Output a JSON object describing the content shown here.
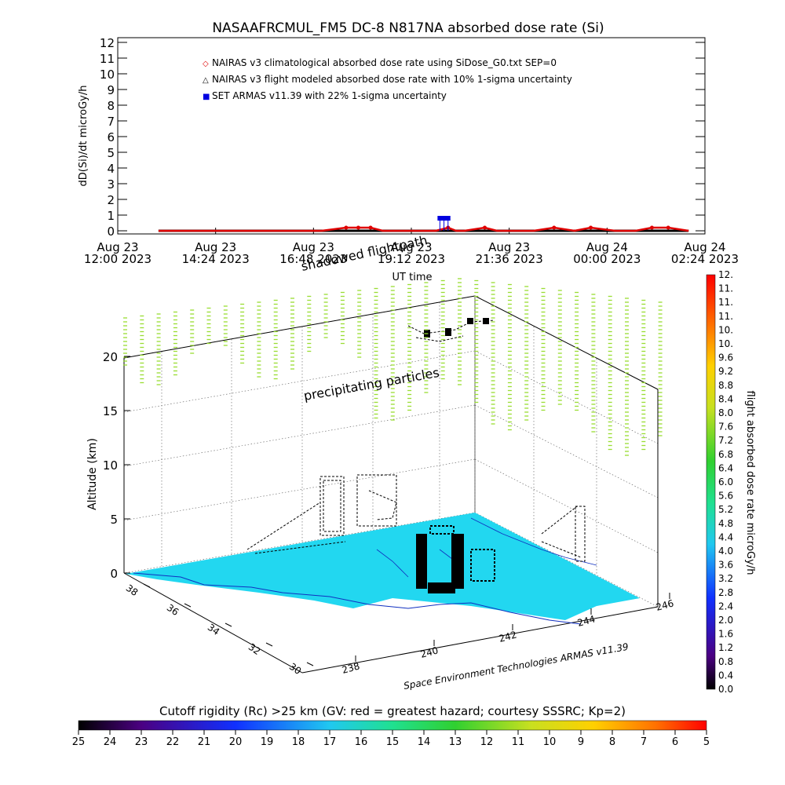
{
  "title": "NASAAFRCMUL_FM5 DC-8   N817NA absorbed dose rate (Si)",
  "colors": {
    "nairas_clim": "#e00000",
    "nairas_flight": "#000000",
    "armas": "#0000e0",
    "terrain": "#22d7f0",
    "precip": "#99dd33"
  },
  "chart_data": [
    {
      "type": "line",
      "ylabel": "dD(Si)/dt microGy/h",
      "xlabel": "UT time",
      "ylim": [
        0,
        12
      ],
      "yticks": [
        "0",
        "1",
        "2",
        "3",
        "4",
        "5",
        "6",
        "7",
        "8",
        "9",
        "10",
        "11",
        "12"
      ],
      "xticks": [
        {
          "t": 0,
          "line1": "Aug 23",
          "line2": "12:00 2023"
        },
        {
          "t": 2.4,
          "line1": "Aug 23",
          "line2": "14:24 2023"
        },
        {
          "t": 4.8,
          "line1": "Aug 23",
          "line2": "16:48 2023"
        },
        {
          "t": 7.2,
          "line1": "Aug 23",
          "line2": "19:12 2023"
        },
        {
          "t": 9.6,
          "line1": "Aug 23",
          "line2": "21:36 2023"
        },
        {
          "t": 12.0,
          "line1": "Aug 24",
          "line2": "00:00 2023"
        },
        {
          "t": 14.4,
          "line1": "Aug 24",
          "line2": "02:24 2023"
        }
      ],
      "legend": [
        {
          "symbol": "◇",
          "color": "#e00000",
          "text": "NAIRAS v3 climatological absorbed dose rate using SiDose_G0.txt SEP=0"
        },
        {
          "symbol": "△",
          "color": "#000000",
          "text": "NAIRAS v3 flight modeled absorbed dose rate with 10% 1-sigma uncertainty"
        },
        {
          "symbol": "■",
          "color": "#0000e0",
          "text": "SET ARMAS v11.39 with 22% 1-sigma uncertainty"
        }
      ],
      "series": [
        {
          "name": "NAIRAS v3 climatological absorbed dose rate using SiDose_G0.txt SEP=0",
          "x": [
            1.0,
            3.0,
            5.0,
            5.6,
            5.9,
            6.2,
            6.5,
            6.9,
            7.5,
            7.8,
            8.1,
            8.3,
            8.5,
            9.0,
            9.3,
            9.8,
            10.2,
            10.7,
            11.2,
            11.6,
            12.2,
            12.7,
            13.1,
            13.5,
            14.0
          ],
          "values": [
            0.0,
            0.0,
            0.0,
            0.2,
            0.2,
            0.2,
            0.0,
            0.0,
            0.0,
            0.0,
            0.2,
            0.0,
            0.0,
            0.2,
            0.0,
            0.0,
            0.0,
            0.2,
            0.0,
            0.2,
            0.0,
            0.0,
            0.2,
            0.2,
            0.0
          ]
        },
        {
          "name": "NAIRAS v3 flight modeled absorbed dose rate with 10% 1-sigma uncertainty",
          "x": [
            1.0,
            3.0,
            5.0,
            7.0,
            9.0,
            11.0,
            13.0,
            14.0
          ],
          "values": [
            0.0,
            0.0,
            0.0,
            0.0,
            0.0,
            0.0,
            0.0,
            0.0
          ]
        },
        {
          "name": "SET ARMAS v11.39 with 22% 1-sigma uncertainty",
          "x": [
            7.9,
            8.0,
            8.1
          ],
          "values": [
            0.8,
            0.8,
            0.8
          ]
        }
      ]
    },
    {
      "type": "heatmap",
      "ylabel": "Altitude (km)",
      "zticks": [
        "0",
        "5",
        "10",
        "15",
        "20"
      ],
      "lat_ticks": [
        "38",
        "36",
        "34",
        "32",
        "30"
      ],
      "lon_ticks": [
        "238",
        "240",
        "242",
        "244",
        "246"
      ],
      "annotations": [
        "shadowed flightpath",
        "precipitating particles"
      ],
      "credit": "Space Environment Technologies ARMAS v11.39"
    },
    {
      "type": "colorbar",
      "label": "flight absorbed dose rate microGy/h",
      "ticks": [
        "0.0",
        "0.4",
        "0.8",
        "1.2",
        "1.6",
        "2.0",
        "2.4",
        "2.8",
        "3.2",
        "3.6",
        "4.0",
        "4.4",
        "4.8",
        "5.2",
        "5.6",
        "6.0",
        "6.4",
        "6.8",
        "7.2",
        "7.6",
        "8.0",
        "8.4",
        "8.8",
        "9.2",
        "9.6",
        "10.",
        "10.",
        "11.",
        "11.",
        "11.",
        "12."
      ]
    },
    {
      "type": "colorbar",
      "label": "Cutoff rigidity (Rc) >25 km (GV: red = greatest hazard; courtesy SSSRC; Kp=2)",
      "ticks": [
        "25",
        "24",
        "23",
        "22",
        "21",
        "20",
        "19",
        "18",
        "17",
        "16",
        "15",
        "14",
        "13",
        "12",
        "11",
        "10",
        "9",
        "8",
        "7",
        "6",
        "5"
      ]
    }
  ]
}
